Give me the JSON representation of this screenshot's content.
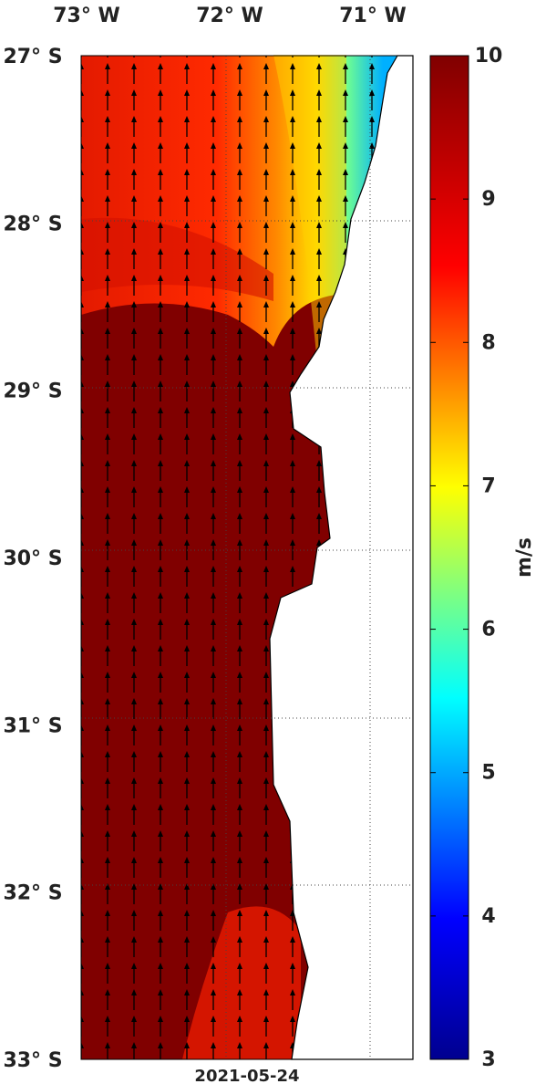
{
  "map": {
    "lon_labels": [
      "73° W",
      "72° W",
      "71° W"
    ],
    "lat_labels": [
      "27° S",
      "28° S",
      "29° S",
      "30° S",
      "31° S",
      "32° S",
      "33° S"
    ],
    "date": "2021-05-24",
    "colorbar": {
      "label": "m/s",
      "lim": [
        3,
        10
      ],
      "ticks": [
        3,
        4,
        5,
        6,
        7,
        8,
        9,
        10
      ]
    }
  }
}
